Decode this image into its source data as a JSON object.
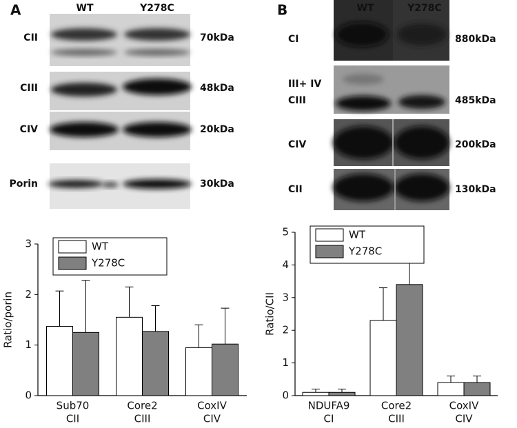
{
  "panels": [
    {
      "label": "A",
      "lanes": [
        "WT",
        "Y278C"
      ],
      "blots": [
        {
          "name": [
            "CII"
          ],
          "size": "70kDa"
        },
        {
          "name": [
            "CIII"
          ],
          "size": "48kDa"
        },
        {
          "name": [
            "CIV"
          ],
          "size": "20kDa"
        },
        {
          "name": [
            "Porin"
          ],
          "size": "30kDa"
        }
      ]
    },
    {
      "label": "B",
      "lanes": [
        "WT",
        "Y278C"
      ],
      "blots": [
        {
          "name": [
            "CI"
          ],
          "size": "880kDa"
        },
        {
          "name": [
            "III+ IV",
            "CIII"
          ],
          "size": "485kDa"
        },
        {
          "name": [
            "CIV"
          ],
          "size": "200kDa"
        },
        {
          "name": [
            "CII"
          ],
          "size": "130kDa"
        }
      ]
    }
  ],
  "chart_data": [
    {
      "type": "bar",
      "ylabel": "Ratio/porin",
      "categories": [
        [
          "Sub70",
          "CII"
        ],
        [
          "Core2",
          "CIII"
        ],
        [
          "CoxIV",
          "CIV"
        ]
      ],
      "series": [
        {
          "name": "WT",
          "color": "#ffffff",
          "values": [
            1.37,
            1.55,
            0.95
          ],
          "errors": [
            0.7,
            0.6,
            0.45
          ]
        },
        {
          "name": "Y278C",
          "color": "#808080",
          "values": [
            1.25,
            1.27,
            1.02
          ],
          "errors": [
            1.03,
            0.51,
            0.71
          ]
        }
      ],
      "ylim": [
        0,
        3
      ],
      "yticks": [
        0,
        1,
        2,
        3
      ],
      "legend": "upper left"
    },
    {
      "type": "bar",
      "ylabel": "Ratio/CII",
      "categories": [
        [
          "NDUFA9",
          "CI"
        ],
        [
          "Core2",
          "CIII"
        ],
        [
          "CoxIV",
          "CIV"
        ]
      ],
      "series": [
        {
          "name": "WT",
          "color": "#ffffff",
          "values": [
            0.1,
            2.3,
            0.4
          ],
          "errors": [
            0.1,
            1.0,
            0.2
          ]
        },
        {
          "name": "Y278C",
          "color": "#808080",
          "values": [
            0.1,
            3.4,
            0.4
          ],
          "errors": [
            0.1,
            1.0,
            0.2
          ]
        }
      ],
      "ylim": [
        0,
        5
      ],
      "yticks": [
        0,
        1,
        2,
        3,
        4,
        5
      ],
      "legend": "upper left"
    }
  ]
}
